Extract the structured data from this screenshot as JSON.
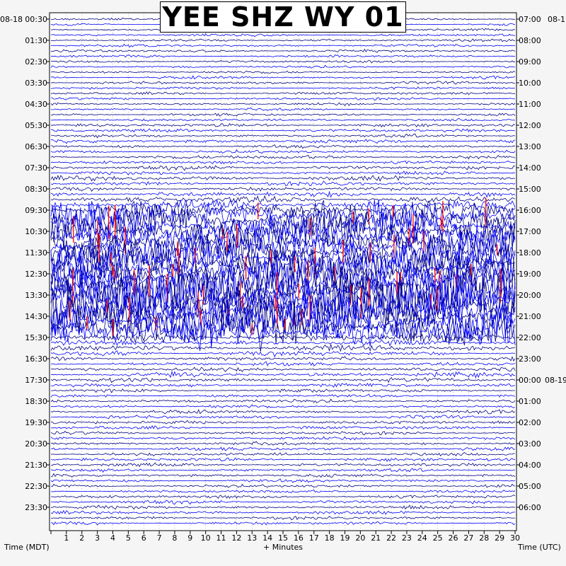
{
  "chart_data": {
    "type": "helicorder",
    "title": "YEE SHZ WY 01",
    "xlabel": "+ Minutes",
    "left_axis_label": "Time (MDT)",
    "right_axis_label": "Time (UTC)",
    "left_date": "08-18",
    "right_date_top": "08-1",
    "right_date_midnight": "08-19",
    "x_ticks": [
      "1",
      "2",
      "3",
      "4",
      "5",
      "6",
      "7",
      "8",
      "9",
      "10",
      "11",
      "12",
      "13",
      "14",
      "15",
      "16",
      "17",
      "18",
      "19",
      "20",
      "21",
      "22",
      "23",
      "24",
      "25",
      "26",
      "27",
      "28",
      "29",
      "30"
    ],
    "xlim": [
      0,
      30
    ],
    "minutes_per_row": 30,
    "left_times": [
      "00:30",
      "01:30",
      "02:30",
      "03:30",
      "04:30",
      "05:30",
      "06:30",
      "07:30",
      "08:30",
      "09:30",
      "10:30",
      "11:30",
      "12:30",
      "13:30",
      "14:30",
      "15:30",
      "16:30",
      "17:30",
      "18:30",
      "19:30",
      "20:30",
      "21:30",
      "22:30",
      "23:30"
    ],
    "right_times": [
      "07:00",
      "08:00",
      "09:00",
      "10:00",
      "11:00",
      "12:00",
      "13:00",
      "14:00",
      "15:00",
      "16:00",
      "17:00",
      "18:00",
      "19:00",
      "20:00",
      "21:00",
      "22:00",
      "23:00",
      "00:00",
      "01:00",
      "02:00",
      "03:00",
      "04:00",
      "05:00",
      "06:00"
    ],
    "trace_colors": [
      "#000080",
      "#0000ff"
    ],
    "clip_color": "#ff0000",
    "row_activity": [
      0.02,
      0.02,
      0.02,
      0.02,
      0.02,
      0.02,
      0.02,
      0.02,
      0.02,
      0.02,
      0.02,
      0.02,
      0.02,
      0.02,
      0.02,
      0.02,
      0.02,
      0.02,
      0.02,
      0.02,
      0.03,
      0.03,
      0.03,
      0.04,
      0.03,
      0.03,
      0.04,
      0.03,
      0.04,
      0.03,
      0.05,
      0.05,
      0.04,
      0.06,
      0.08,
      0.12,
      0.22,
      0.45,
      0.55,
      0.5,
      0.55,
      0.6,
      0.5,
      0.55,
      0.55,
      0.5,
      0.6,
      0.55,
      0.65,
      0.75,
      0.8,
      0.85,
      0.85,
      0.75,
      0.75,
      0.8,
      0.65,
      0.75,
      0.6,
      0.45,
      0.12,
      0.06,
      0.08,
      0.06,
      0.04,
      0.04,
      0.04,
      0.05,
      0.04,
      0.04,
      0.03,
      0.03,
      0.04,
      0.03,
      0.03,
      0.03,
      0.03,
      0.03,
      0.03,
      0.03,
      0.03,
      0.03,
      0.03,
      0.03,
      0.03,
      0.03,
      0.03,
      0.03,
      0.03,
      0.03,
      0.03,
      0.03,
      0.03,
      0.03,
      0.03,
      0.03
    ]
  }
}
